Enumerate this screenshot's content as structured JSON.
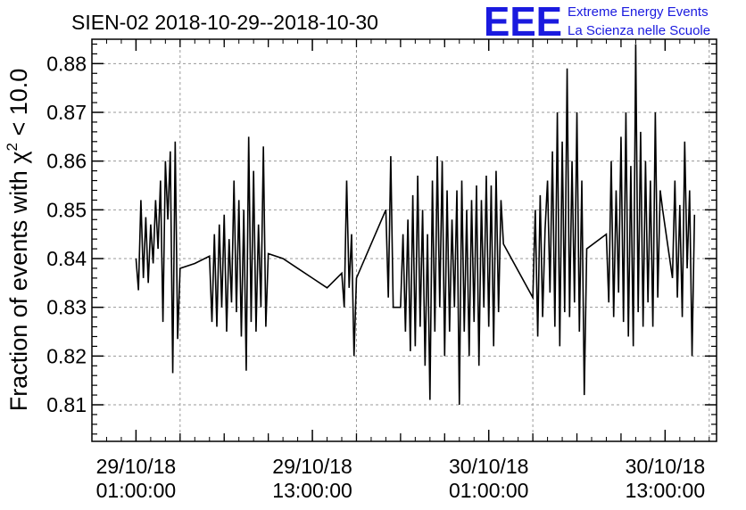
{
  "chart_data": {
    "type": "line",
    "title": "SIEN-02 2018-10-29--2018-10-30",
    "ylabel_prefix": "Fraction of events with χ",
    "ylabel_sup": "2",
    "ylabel_suffix": " < 10.0",
    "xlabel": "",
    "ylim": [
      0.8025,
      0.885
    ],
    "y_ticks": [
      0.81,
      0.82,
      0.83,
      0.84,
      0.85,
      0.86,
      0.87,
      0.88
    ],
    "y_tick_labels": [
      "0.81",
      "0.82",
      "0.83",
      "0.84",
      "0.85",
      "0.86",
      "0.87",
      "0.88"
    ],
    "xlim": [
      "2018-10-28 22:00:00",
      "2018-10-30 16:30:00"
    ],
    "x_major_ticks": [
      "2018-10-29 01:00:00",
      "2018-10-29 13:00:00",
      "2018-10-30 01:00:00",
      "2018-10-30 13:00:00"
    ],
    "x_tick_labels": [
      {
        "date": "29/10/18",
        "time": "01:00:00"
      },
      {
        "date": "29/10/18",
        "time": "13:00:00"
      },
      {
        "date": "30/10/18",
        "time": "01:00:00"
      },
      {
        "date": "30/10/18",
        "time": "13:00:00"
      }
    ],
    "x_minor_ticks": [
      "2018-10-29 04:00:00",
      "2018-10-29 07:00:00",
      "2018-10-29 10:00:00",
      "2018-10-29 16:00:00",
      "2018-10-29 19:00:00",
      "2018-10-29 22:00:00",
      "2018-10-30 04:00:00",
      "2018-10-30 07:00:00",
      "2018-10-30 10:00:00"
    ],
    "x_gridlines": [
      "2018-10-29 04:00:00",
      "2018-10-29 16:00:00",
      "2018-10-30 04:00:00",
      "2018-10-30 16:00:00"
    ],
    "grid": true,
    "series": [
      {
        "color": "#000000",
        "points": [
          [
            "2018-10-29 01:00:00",
            0.84
          ],
          [
            "2018-10-29 01:10:00",
            0.8335
          ],
          [
            "2018-10-29 01:20:00",
            0.852
          ],
          [
            "2018-10-29 01:30:00",
            0.836
          ],
          [
            "2018-10-29 01:40:00",
            0.8485
          ],
          [
            "2018-10-29 01:50:00",
            0.835
          ],
          [
            "2018-10-29 02:00:00",
            0.847
          ],
          [
            "2018-10-29 02:10:00",
            0.839
          ],
          [
            "2018-10-29 02:20:00",
            0.852
          ],
          [
            "2018-10-29 02:30:00",
            0.842
          ],
          [
            "2018-10-29 02:40:00",
            0.856
          ],
          [
            "2018-10-29 02:50:00",
            0.827
          ],
          [
            "2018-10-29 03:00:00",
            0.86
          ],
          [
            "2018-10-29 03:10:00",
            0.848
          ],
          [
            "2018-10-29 03:20:00",
            0.862
          ],
          [
            "2018-10-29 03:30:00",
            0.8165
          ],
          [
            "2018-10-29 03:40:00",
            0.864
          ],
          [
            "2018-10-29 03:50:00",
            0.8235
          ],
          [
            "2018-10-29 04:00:00",
            0.838
          ],
          [
            "2018-10-29 05:00:00",
            0.839
          ],
          [
            "2018-10-29 06:00:00",
            0.8405
          ],
          [
            "2018-10-29 06:10:00",
            0.827
          ],
          [
            "2018-10-29 06:20:00",
            0.845
          ],
          [
            "2018-10-29 06:30:00",
            0.826
          ],
          [
            "2018-10-29 06:40:00",
            0.847
          ],
          [
            "2018-10-29 06:50:00",
            0.83
          ],
          [
            "2018-10-29 07:00:00",
            0.849
          ],
          [
            "2018-10-29 07:10:00",
            0.825
          ],
          [
            "2018-10-29 07:20:00",
            0.844
          ],
          [
            "2018-10-29 07:30:00",
            0.831
          ],
          [
            "2018-10-29 07:40:00",
            0.856
          ],
          [
            "2018-10-29 07:50:00",
            0.829
          ],
          [
            "2018-10-29 08:00:00",
            0.852
          ],
          [
            "2018-10-29 08:10:00",
            0.824
          ],
          [
            "2018-10-29 08:20:00",
            0.85
          ],
          [
            "2018-10-29 08:30:00",
            0.817
          ],
          [
            "2018-10-29 08:40:00",
            0.865
          ],
          [
            "2018-10-29 08:50:00",
            0.827
          ],
          [
            "2018-10-29 09:00:00",
            0.858
          ],
          [
            "2018-10-29 09:10:00",
            0.825
          ],
          [
            "2018-10-29 09:20:00",
            0.847
          ],
          [
            "2018-10-29 09:30:00",
            0.83
          ],
          [
            "2018-10-29 09:40:00",
            0.863
          ],
          [
            "2018-10-29 09:50:00",
            0.826
          ],
          [
            "2018-10-29 10:00:00",
            0.841
          ],
          [
            "2018-10-29 11:00:00",
            0.84
          ],
          [
            "2018-10-29 12:00:00",
            0.838
          ],
          [
            "2018-10-29 13:00:00",
            0.836
          ],
          [
            "2018-10-29 14:00:00",
            0.834
          ],
          [
            "2018-10-29 15:00:00",
            0.837
          ],
          [
            "2018-10-29 15:10:00",
            0.83
          ],
          [
            "2018-10-29 15:20:00",
            0.856
          ],
          [
            "2018-10-29 15:30:00",
            0.834
          ],
          [
            "2018-10-29 15:40:00",
            0.845
          ],
          [
            "2018-10-29 15:50:00",
            0.82
          ],
          [
            "2018-10-29 16:00:00",
            0.836
          ],
          [
            "2018-10-29 18:00:00",
            0.85
          ],
          [
            "2018-10-29 18:10:00",
            0.832
          ],
          [
            "2018-10-29 18:20:00",
            0.861
          ],
          [
            "2018-10-29 18:30:00",
            0.83
          ],
          [
            "2018-10-29 19:00:00",
            0.83
          ],
          [
            "2018-10-29 19:10:00",
            0.845
          ],
          [
            "2018-10-29 19:20:00",
            0.825
          ],
          [
            "2018-10-29 19:30:00",
            0.848
          ],
          [
            "2018-10-29 19:40:00",
            0.821
          ],
          [
            "2018-10-29 19:50:00",
            0.853
          ],
          [
            "2018-10-29 20:00:00",
            0.822
          ],
          [
            "2018-10-29 20:10:00",
            0.857
          ],
          [
            "2018-10-29 20:20:00",
            0.826
          ],
          [
            "2018-10-29 20:30:00",
            0.85
          ],
          [
            "2018-10-29 20:40:00",
            0.818
          ],
          [
            "2018-10-29 20:50:00",
            0.845
          ],
          [
            "2018-10-29 21:00:00",
            0.811
          ],
          [
            "2018-10-29 21:10:00",
            0.856
          ],
          [
            "2018-10-29 21:20:00",
            0.825
          ],
          [
            "2018-10-29 21:30:00",
            0.861
          ],
          [
            "2018-10-29 21:40:00",
            0.83
          ],
          [
            "2018-10-29 21:50:00",
            0.86
          ],
          [
            "2018-10-29 22:00:00",
            0.82
          ],
          [
            "2018-10-29 22:10:00",
            0.854
          ],
          [
            "2018-10-29 22:20:00",
            0.825
          ],
          [
            "2018-10-29 22:30:00",
            0.848
          ],
          [
            "2018-10-29 22:40:00",
            0.83
          ],
          [
            "2018-10-29 22:50:00",
            0.854
          ],
          [
            "2018-10-29 23:00:00",
            0.81
          ],
          [
            "2018-10-29 23:10:00",
            0.856
          ],
          [
            "2018-10-29 23:20:00",
            0.825
          ],
          [
            "2018-10-29 23:30:00",
            0.85
          ],
          [
            "2018-10-29 23:40:00",
            0.82
          ],
          [
            "2018-10-29 23:50:00",
            0.852
          ],
          [
            "2018-10-30 00:00:00",
            0.827
          ],
          [
            "2018-10-30 00:10:00",
            0.855
          ],
          [
            "2018-10-30 00:20:00",
            0.818
          ],
          [
            "2018-10-30 00:30:00",
            0.852
          ],
          [
            "2018-10-30 00:40:00",
            0.83
          ],
          [
            "2018-10-30 00:50:00",
            0.857
          ],
          [
            "2018-10-30 01:00:00",
            0.826
          ],
          [
            "2018-10-30 01:10:00",
            0.855
          ],
          [
            "2018-10-30 01:20:00",
            0.822
          ],
          [
            "2018-10-30 01:30:00",
            0.858
          ],
          [
            "2018-10-30 01:40:00",
            0.829
          ],
          [
            "2018-10-30 01:50:00",
            0.852
          ],
          [
            "2018-10-30 02:00:00",
            0.843
          ],
          [
            "2018-10-30 04:00:00",
            0.832
          ],
          [
            "2018-10-30 04:10:00",
            0.85
          ],
          [
            "2018-10-30 04:20:00",
            0.824
          ],
          [
            "2018-10-30 04:30:00",
            0.853
          ],
          [
            "2018-10-30 04:40:00",
            0.828
          ],
          [
            "2018-10-30 04:50:00",
            0.846
          ],
          [
            "2018-10-30 05:00:00",
            0.856
          ],
          [
            "2018-10-30 05:10:00",
            0.833
          ],
          [
            "2018-10-30 05:20:00",
            0.862
          ],
          [
            "2018-10-30 05:30:00",
            0.826
          ],
          [
            "2018-10-30 05:40:00",
            0.87
          ],
          [
            "2018-10-30 05:50:00",
            0.822
          ],
          [
            "2018-10-30 06:00:00",
            0.864
          ],
          [
            "2018-10-30 06:10:00",
            0.829
          ],
          [
            "2018-10-30 06:20:00",
            0.879
          ],
          [
            "2018-10-30 06:30:00",
            0.828
          ],
          [
            "2018-10-30 06:40:00",
            0.86
          ],
          [
            "2018-10-30 06:50:00",
            0.831
          ],
          [
            "2018-10-30 07:00:00",
            0.87
          ],
          [
            "2018-10-30 07:10:00",
            0.825
          ],
          [
            "2018-10-30 07:20:00",
            0.856
          ],
          [
            "2018-10-30 07:30:00",
            0.812
          ],
          [
            "2018-10-30 07:40:00",
            0.842
          ],
          [
            "2018-10-30 09:00:00",
            0.845
          ],
          [
            "2018-10-30 09:10:00",
            0.831
          ],
          [
            "2018-10-30 09:20:00",
            0.86
          ],
          [
            "2018-10-30 09:30:00",
            0.828
          ],
          [
            "2018-10-30 09:40:00",
            0.854
          ],
          [
            "2018-10-30 09:50:00",
            0.833
          ],
          [
            "2018-10-30 10:00:00",
            0.865
          ],
          [
            "2018-10-30 10:10:00",
            0.827
          ],
          [
            "2018-10-30 10:20:00",
            0.87
          ],
          [
            "2018-10-30 10:30:00",
            0.824
          ],
          [
            "2018-10-30 10:40:00",
            0.859
          ],
          [
            "2018-10-30 10:50:00",
            0.822
          ],
          [
            "2018-10-30 11:00:00",
            0.884
          ],
          [
            "2018-10-30 11:10:00",
            0.829
          ],
          [
            "2018-10-30 11:20:00",
            0.866
          ],
          [
            "2018-10-30 11:30:00",
            0.826
          ],
          [
            "2018-10-30 11:40:00",
            0.86
          ],
          [
            "2018-10-30 11:50:00",
            0.831
          ],
          [
            "2018-10-30 12:00:00",
            0.856
          ],
          [
            "2018-10-30 12:10:00",
            0.826
          ],
          [
            "2018-10-30 12:20:00",
            0.87
          ],
          [
            "2018-10-30 12:30:00",
            0.832
          ],
          [
            "2018-10-30 12:40:00",
            0.854
          ],
          [
            "2018-10-30 12:50:00",
            0.85
          ],
          [
            "2018-10-30 13:30:00",
            0.836
          ],
          [
            "2018-10-30 13:40:00",
            0.856
          ],
          [
            "2018-10-30 13:50:00",
            0.832
          ],
          [
            "2018-10-30 14:00:00",
            0.851
          ],
          [
            "2018-10-30 14:10:00",
            0.828
          ],
          [
            "2018-10-30 14:20:00",
            0.864
          ],
          [
            "2018-10-30 14:30:00",
            0.838
          ],
          [
            "2018-10-30 14:40:00",
            0.854
          ],
          [
            "2018-10-30 14:50:00",
            0.82
          ],
          [
            "2018-10-30 15:00:00",
            0.849
          ]
        ]
      }
    ]
  },
  "branding": {
    "logo_text": "EEE",
    "line1": "Extreme Energy Events",
    "line2": "La Scienza nelle Scuole",
    "color": "#1a1adf"
  }
}
